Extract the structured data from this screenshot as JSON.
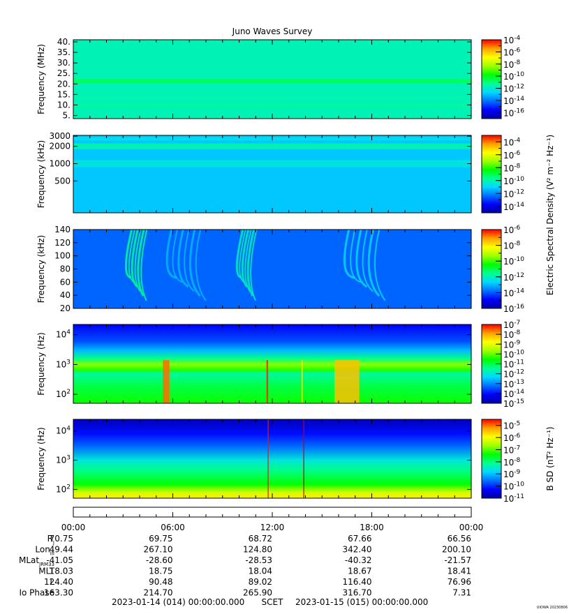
{
  "title": "Juno Waves Survey",
  "watermark": "UIOWA 20230806",
  "colorscale": {
    "stops": [
      "#0000a0",
      "#0000ff",
      "#0070ff",
      "#00d8ff",
      "#00ff90",
      "#00ff00",
      "#a0ff00",
      "#ffff00",
      "#ffa000",
      "#ff0000"
    ]
  },
  "chart_data": [
    {
      "type": "heatmap",
      "panel": "hfwbr",
      "ylabel": "Frequency (MHz)",
      "scale": "linear",
      "ylim": [
        3.5,
        41
      ],
      "yticks": [
        {
          "v": 5,
          "t": "5."
        },
        {
          "v": 10,
          "t": "10."
        },
        {
          "v": 15,
          "t": "15."
        },
        {
          "v": 20,
          "t": "20."
        },
        {
          "v": 25,
          "t": "25."
        },
        {
          "v": 30,
          "t": "30."
        },
        {
          "v": 35,
          "t": "35."
        },
        {
          "v": 40,
          "t": "40."
        }
      ],
      "colorbar": {
        "min": -17,
        "max": -4,
        "labels": [
          -4,
          -6,
          -8,
          -10,
          -12,
          -14,
          -16
        ],
        "label": ""
      },
      "background": -11.7,
      "bands": [
        {
          "y": 21.5,
          "halfwidth": 1.0,
          "value": -10.6
        },
        {
          "y": 9.5,
          "halfwidth": 0.6,
          "value": -11.4
        },
        {
          "y": 13.5,
          "halfwidth": 0.4,
          "value": -11.5
        }
      ]
    },
    {
      "type": "heatmap",
      "panel": "hf",
      "ylabel": "Frequency (kHz)",
      "scale": "log",
      "ylim": [
        140,
        3100
      ],
      "yticks": [
        {
          "v": 500,
          "t": "500"
        },
        {
          "v": 1000,
          "t": "1000"
        },
        {
          "v": 2000,
          "t": "2000"
        },
        {
          "v": 3000,
          "t": "3000"
        }
      ],
      "colorbar": {
        "min": -15,
        "max": -3,
        "labels": [
          -4,
          -6,
          -8,
          -10,
          -12,
          -14
        ],
        "label": "Electric Spectral Density (V² m⁻² Hz⁻¹)"
      },
      "background": -11.2,
      "bands": [
        {
          "y": 2000,
          "halfwidth": 0.05,
          "value": -10.0
        },
        {
          "y": 1000,
          "halfwidth": 0.06,
          "value": -10.6
        },
        {
          "y": 2700,
          "halfwidth": 0.03,
          "value": -10.8
        }
      ]
    },
    {
      "type": "heatmap",
      "panel": "lfr",
      "ylabel": "Frequency (kHz)",
      "scale": "linear",
      "ylim": [
        20,
        140
      ],
      "yticks": [
        {
          "v": 20,
          "t": "20"
        },
        {
          "v": 40,
          "t": "40"
        },
        {
          "v": 60,
          "t": "60"
        },
        {
          "v": 80,
          "t": "80"
        },
        {
          "v": 100,
          "t": "100"
        },
        {
          "v": 120,
          "t": "120"
        },
        {
          "v": 140,
          "t": "140"
        }
      ],
      "colorbar": {
        "min": -16,
        "max": -6,
        "labels": [
          -6,
          -8,
          -10,
          -12,
          -14,
          -16
        ],
        "label": ""
      },
      "background": -13.9,
      "arcs": [
        {
          "t0": 3.1,
          "t1": 4.2,
          "value": -11.6
        },
        {
          "t0": 9.8,
          "t1": 10.8,
          "value": -12.0
        },
        {
          "t0": 16.2,
          "t1": 18.4,
          "value": -12.6
        },
        {
          "t0": 5.5,
          "t1": 7.6,
          "value": -13.0
        }
      ]
    },
    {
      "type": "heatmap",
      "panel": "lfr-low",
      "ylabel": "Frequency (Hz)",
      "scale": "log",
      "ylim": [
        50,
        22000
      ],
      "yticks": [
        {
          "v": 100,
          "t": "10",
          "e": "2"
        },
        {
          "v": 1000,
          "t": "10",
          "e": "3"
        },
        {
          "v": 10000,
          "t": "10",
          "e": "4"
        }
      ],
      "colorbar": {
        "min": -15,
        "max": -7,
        "labels": [
          -7,
          -8,
          -9,
          -10,
          -11,
          -12,
          -13,
          -14,
          -15
        ],
        "label": ""
      },
      "profile": [
        [
          50,
          -10.5
        ],
        [
          200,
          -11.0
        ],
        [
          500,
          -11.6
        ],
        [
          650,
          -10.4
        ],
        [
          1000,
          -9.8
        ],
        [
          1600,
          -11.4
        ],
        [
          3000,
          -12.6
        ],
        [
          6000,
          -13.5
        ],
        [
          22000,
          -14.2
        ]
      ],
      "spikes": [
        {
          "t": 5.6,
          "width": 0.4,
          "value": -7.6
        },
        {
          "t": 11.7,
          "width": 0.1,
          "value": -7.2
        },
        {
          "t": 13.8,
          "width": 0.05,
          "value": -8.6
        },
        {
          "t": 16.5,
          "width": 1.5,
          "value": -8.2
        }
      ]
    },
    {
      "type": "heatmap",
      "panel": "magnetic",
      "ylabel": "Frequency (Hz)",
      "scale": "log",
      "ylim": [
        50,
        25000
      ],
      "yticks": [
        {
          "v": 100,
          "t": "10",
          "e": "2"
        },
        {
          "v": 1000,
          "t": "10",
          "e": "3"
        },
        {
          "v": 10000,
          "t": "10",
          "e": "4"
        }
      ],
      "colorbar": {
        "min": -11,
        "max": -4.5,
        "labels": [
          -5,
          -6,
          -7,
          -8,
          -9,
          -10,
          -11
        ],
        "label": "B SD (nT² Hz⁻¹)"
      },
      "profile": [
        [
          50,
          -5.8
        ],
        [
          80,
          -6.3
        ],
        [
          150,
          -7.4
        ],
        [
          400,
          -8.0
        ],
        [
          1000,
          -8.6
        ],
        [
          3000,
          -9.6
        ],
        [
          8000,
          -10.2
        ],
        [
          25000,
          -10.8
        ]
      ],
      "lines": [
        {
          "t": 11.75,
          "color": "#cc2222"
        },
        {
          "t": 13.9,
          "color": "#cc0000"
        }
      ]
    }
  ],
  "time_axis": {
    "range_hours": [
      0,
      24
    ],
    "labels": [
      "00:00",
      "06:00",
      "12:00",
      "18:00",
      "00:00"
    ]
  },
  "ephemeris": {
    "rows": [
      {
        "name": "R",
        "sub": "J",
        "values": [
          "70.75",
          "69.75",
          "68.72",
          "67.66",
          "66.56"
        ]
      },
      {
        "name": "Lon",
        "sub": "III",
        "values": [
          "49.44",
          "267.10",
          "124.80",
          "342.40",
          "200.10"
        ]
      },
      {
        "name": "MLat",
        "sub": "JRM33",
        "values": [
          "-41.05",
          "-28.60",
          "-28.53",
          "-40.32",
          "-21.57"
        ]
      },
      {
        "name": "MLT",
        "sub": "",
        "values": [
          "18.03",
          "18.75",
          "18.04",
          "18.67",
          "18.41"
        ]
      },
      {
        "name": "L",
        "sub": "",
        "values": [
          "124.40",
          "90.48",
          "89.02",
          "116.40",
          "76.96"
        ]
      },
      {
        "name": "Io Phase",
        "sub": "",
        "values": [
          "163.30",
          "214.70",
          "265.90",
          "316.70",
          "7.31"
        ]
      }
    ]
  },
  "footer": {
    "start": "2023-01-14 (014) 00:00:00.000",
    "label": "SCET",
    "end": "2023-01-15 (015) 00:00:00.000"
  }
}
